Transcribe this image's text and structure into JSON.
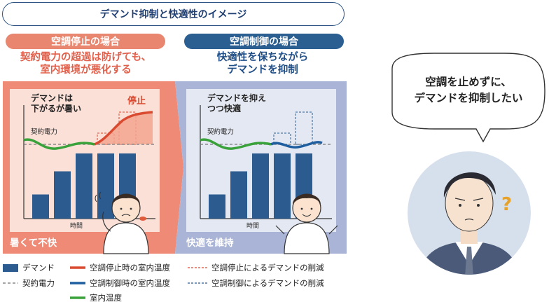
{
  "title": "デマンド抑制と快適性のイメージ",
  "left": {
    "pill": "空調停止の場合",
    "subtitle_line1": "契約電力の超過は防げても、",
    "subtitle_line2": "室内環境が悪化する",
    "panel_text_line1": "デマンドは",
    "panel_text_line2": "下がるが暑い",
    "stop_label": "停止",
    "contract_label": "契約電力",
    "time_label": "時間",
    "bottom_label": "暑くて不快",
    "bar_values": [
      0.23,
      0.45,
      0.62,
      0.62,
      0.62
    ]
  },
  "right": {
    "pill": "空調制御の場合",
    "subtitle_line1": "快適性を保ちながら",
    "subtitle_line2": "デマンドを抑制",
    "panel_text_line1": "デマンドを抑え",
    "panel_text_line2": "つつ快適",
    "contract_label": "契約電力",
    "time_label": "時間",
    "bottom_label": "快適を維持",
    "bar_values": [
      0.23,
      0.45,
      0.62,
      0.62,
      0.62
    ]
  },
  "legend": {
    "demand": "デマンド",
    "contract": "契約電力",
    "stop_temp": "空調停止時の室内温度",
    "control_temp": "空調制御時の室内温度",
    "room_temp": "室内温度",
    "stop_reduction": "空調停止によるデマンドの削減",
    "control_reduction": "空調制御によるデマンドの削減"
  },
  "bubble": {
    "line1": "空調を止めずに、",
    "line2": "デマンドを抑制したい"
  },
  "colors": {
    "navy": "#2c5b8f",
    "red": "#d94a30",
    "green": "#3aa23a",
    "salmon": "#e8866f",
    "lavender": "#a7b3d4"
  }
}
